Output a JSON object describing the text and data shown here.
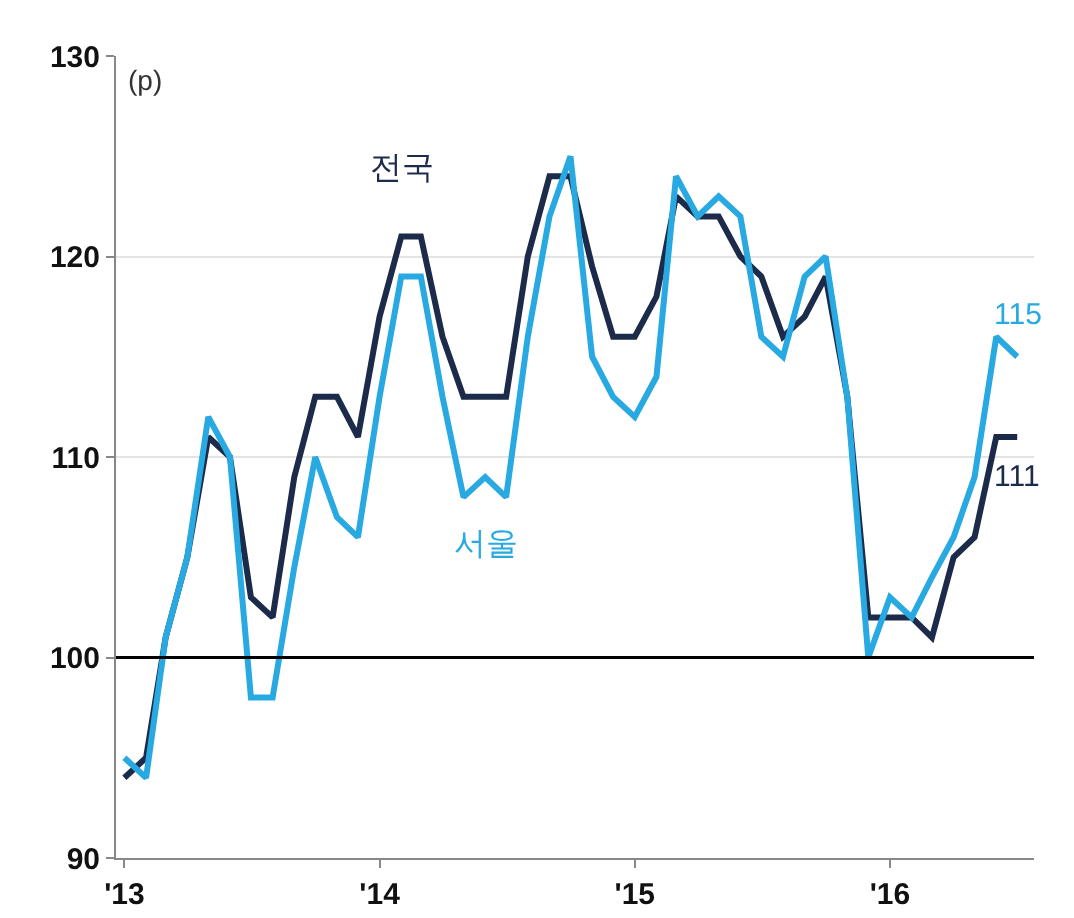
{
  "chart_data": {
    "type": "line",
    "ylabel": "(p)",
    "x": [
      "2013-01",
      "2013-02",
      "2013-03",
      "2013-04",
      "2013-05",
      "2013-06",
      "2013-07",
      "2013-08",
      "2013-09",
      "2013-10",
      "2013-11",
      "2013-12",
      "2014-01",
      "2014-02",
      "2014-03",
      "2014-04",
      "2014-05",
      "2014-06",
      "2014-07",
      "2014-08",
      "2014-09",
      "2014-10",
      "2014-11",
      "2014-12",
      "2015-01",
      "2015-02",
      "2015-03",
      "2015-04",
      "2015-05",
      "2015-06",
      "2015-07",
      "2015-08",
      "2015-09",
      "2015-10",
      "2015-11",
      "2015-12",
      "2016-01",
      "2016-02",
      "2016-03",
      "2016-04",
      "2016-05",
      "2016-06",
      "2016-07"
    ],
    "series": [
      {
        "name": "전국",
        "color": "#1c2b4a",
        "values": [
          94,
          95,
          101,
          105,
          111,
          110,
          103,
          102,
          109,
          113,
          113,
          111,
          117,
          121,
          121,
          116,
          113,
          113,
          113,
          120,
          124,
          124,
          119.5,
          116,
          116,
          118,
          123,
          122,
          122,
          120,
          119,
          116,
          117,
          119,
          113,
          102,
          102,
          102,
          101,
          105,
          106,
          111,
          111
        ],
        "value_labels": [
          null,
          null,
          null,
          null,
          null,
          null,
          null,
          null,
          null,
          null,
          null,
          null,
          null,
          null,
          null,
          null,
          null,
          null,
          null,
          null,
          null,
          null,
          null,
          null,
          null,
          null,
          null,
          null,
          null,
          null,
          null,
          null,
          null,
          null,
          null,
          null,
          null,
          null,
          null,
          null,
          null,
          null,
          "111"
        ]
      },
      {
        "name": "서울",
        "color": "#29a9e1",
        "values": [
          95,
          94,
          101,
          105,
          112,
          110,
          98,
          98,
          104.5,
          110,
          107,
          106,
          113,
          119,
          119,
          113,
          108,
          109,
          108,
          116,
          122,
          125,
          115,
          113,
          112,
          114,
          124,
          122,
          123,
          122,
          116,
          115,
          119,
          120,
          113,
          100,
          103,
          102,
          104,
          106,
          109,
          116,
          115
        ],
        "value_labels": [
          null,
          null,
          null,
          null,
          null,
          null,
          null,
          null,
          null,
          null,
          null,
          null,
          null,
          null,
          null,
          null,
          null,
          null,
          null,
          null,
          null,
          null,
          null,
          null,
          null,
          null,
          null,
          null,
          null,
          null,
          null,
          null,
          null,
          null,
          null,
          null,
          null,
          null,
          null,
          null,
          null,
          null,
          "115"
        ]
      }
    ],
    "xlim": [
      "2012-12-20",
      "2016-07-25"
    ],
    "xticks": [
      {
        "value": "2013-01",
        "label": "'13"
      },
      {
        "value": "2014-01",
        "label": "'14"
      },
      {
        "value": "2015-01",
        "label": "'15"
      },
      {
        "value": "2016-01",
        "label": "'16"
      }
    ],
    "ylim": [
      90,
      130
    ],
    "yticks": [
      90,
      100,
      110,
      120,
      130
    ],
    "ref_lines": [
      {
        "axis": "y",
        "value": 100,
        "color": "#000000"
      }
    ],
    "grid": "y",
    "legend": false,
    "marker": "none",
    "line_style": "solid"
  }
}
